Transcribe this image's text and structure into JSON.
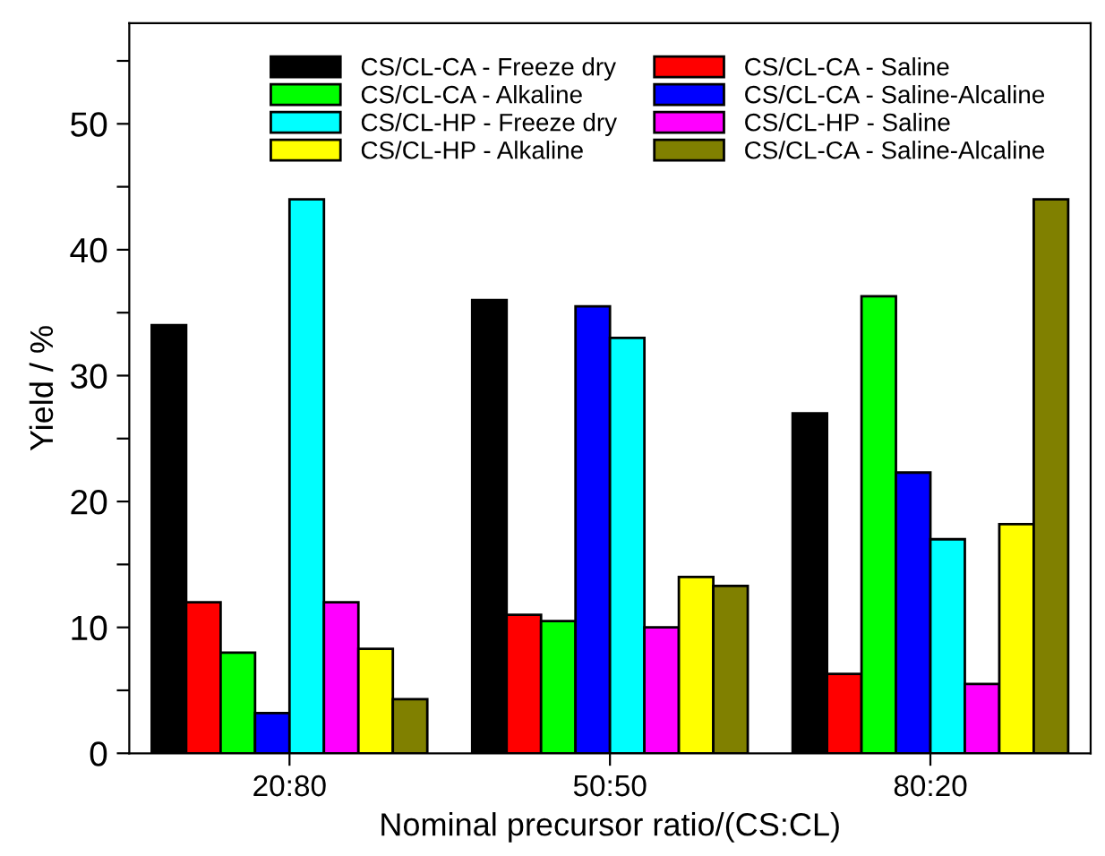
{
  "chart_data": {
    "type": "bar",
    "xlabel": "Nominal precursor ratio/(CS:CL)",
    "ylabel": "Yield / %",
    "categories": [
      "20:80",
      "50:50",
      "80:20"
    ],
    "series": [
      {
        "name": "CS/CL-CA - Freeze dry",
        "color": "#000000",
        "values": [
          34,
          36,
          27
        ]
      },
      {
        "name": "CS/CL-CA - Saline",
        "color": "#ff0000",
        "values": [
          12,
          11,
          6.3
        ]
      },
      {
        "name": "CS/CL-CA - Alkaline",
        "color": "#00ff00",
        "values": [
          8,
          10.5,
          36.3
        ]
      },
      {
        "name": "CS/CL-CA - Saline-Alcaline",
        "color": "#0000ff",
        "values": [
          3.2,
          35.5,
          22.3
        ]
      },
      {
        "name": "CS/CL-HP - Freeze dry",
        "color": "#00ffff",
        "values": [
          44,
          33,
          17
        ]
      },
      {
        "name": "CS/CL-HP - Saline",
        "color": "#ff00ff",
        "values": [
          12,
          10,
          5.5
        ]
      },
      {
        "name": "CS/CL-HP - Alkaline",
        "color": "#ffff00",
        "values": [
          8.3,
          14,
          18.2
        ]
      },
      {
        "name": "CS/CL-CA - Saline-Alcaline",
        "color": "#808000",
        "values": [
          4.3,
          13.3,
          44
        ]
      }
    ],
    "ylim": [
      0,
      58
    ],
    "yticks": [
      0,
      {
        "value": 5,
        "label": null
      },
      10,
      {
        "value": 15,
        "label": null
      },
      20,
      {
        "value": 25,
        "label": null
      },
      30,
      {
        "value": 35,
        "label": null
      },
      40,
      {
        "value": 45,
        "label": null
      },
      50,
      {
        "value": 55,
        "label": null
      }
    ],
    "grid": false,
    "legend": "top"
  }
}
